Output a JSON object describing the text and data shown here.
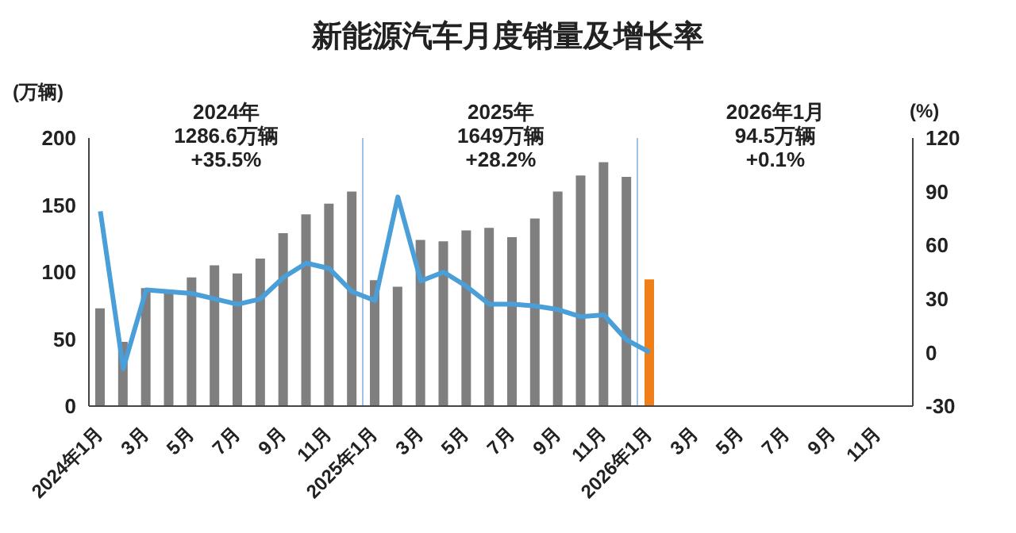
{
  "chart_data": {
    "type": "bar",
    "title": "新能源汽车月度销量及增长率",
    "ylabel": "(万辆)",
    "y2label": "(%)",
    "categories": [
      "2024年1月",
      null,
      "3月",
      null,
      "5月",
      null,
      "7月",
      null,
      "9月",
      null,
      "11月",
      null,
      "2025年1月",
      null,
      "3月",
      null,
      "5月",
      null,
      "7月",
      null,
      "9月",
      null,
      "11月",
      null,
      "2026年1月",
      null,
      "3月",
      null,
      "5月",
      null,
      "7月",
      null,
      "9月",
      null,
      "11月",
      null
    ],
    "series": [
      {
        "color": "#7f7f7f",
        "colors": [
          "#7f7f7f",
          "#7f7f7f",
          "#7f7f7f",
          "#7f7f7f",
          "#7f7f7f",
          "#7f7f7f",
          "#7f7f7f",
          "#7f7f7f",
          "#7f7f7f",
          "#7f7f7f",
          "#7f7f7f",
          "#7f7f7f",
          "#7f7f7f",
          "#7f7f7f",
          "#7f7f7f",
          "#7f7f7f",
          "#7f7f7f",
          "#7f7f7f",
          "#7f7f7f",
          "#7f7f7f",
          "#7f7f7f",
          "#7f7f7f",
          "#7f7f7f",
          "#7f7f7f",
          "#f07f1a",
          "#7f7f7f",
          "#7f7f7f",
          "#7f7f7f",
          "#7f7f7f",
          "#7f7f7f",
          "#7f7f7f",
          "#7f7f7f",
          "#7f7f7f",
          "#7f7f7f",
          "#7f7f7f",
          "#7f7f7f"
        ],
        "values": [
          73,
          48,
          88,
          85,
          96,
          105,
          99,
          110,
          129,
          143,
          151,
          160,
          94,
          89,
          124,
          123,
          131,
          133,
          126,
          140,
          160,
          172,
          182,
          171,
          94.5,
          null,
          null,
          null,
          null,
          null,
          null,
          null,
          null,
          null,
          null,
          null
        ]
      },
      {
        "type": "line",
        "axis": "y2",
        "color": "#4a9fd8",
        "values": [
          79,
          -9,
          35,
          34,
          33,
          30,
          27,
          30,
          42,
          50,
          47,
          34,
          29,
          87,
          40,
          45,
          37,
          27,
          27,
          26,
          24,
          20,
          21,
          7,
          0.1,
          null,
          null,
          null,
          null,
          null,
          null,
          null,
          null,
          null,
          null,
          null
        ]
      }
    ],
    "ylim": [
      0,
      200
    ],
    "yticks": [
      0,
      50,
      100,
      150,
      200
    ],
    "y2lim": [
      -30,
      120
    ],
    "y2ticks": [
      -30,
      0,
      30,
      60,
      90,
      120
    ],
    "annotations": [
      "2024年\n1286.6万辆\n+35.5%",
      "2025年\n1649万辆\n+28.2%",
      "2026年1月\n94.5万辆\n+0.1%"
    ],
    "grid": false,
    "legend": false
  }
}
